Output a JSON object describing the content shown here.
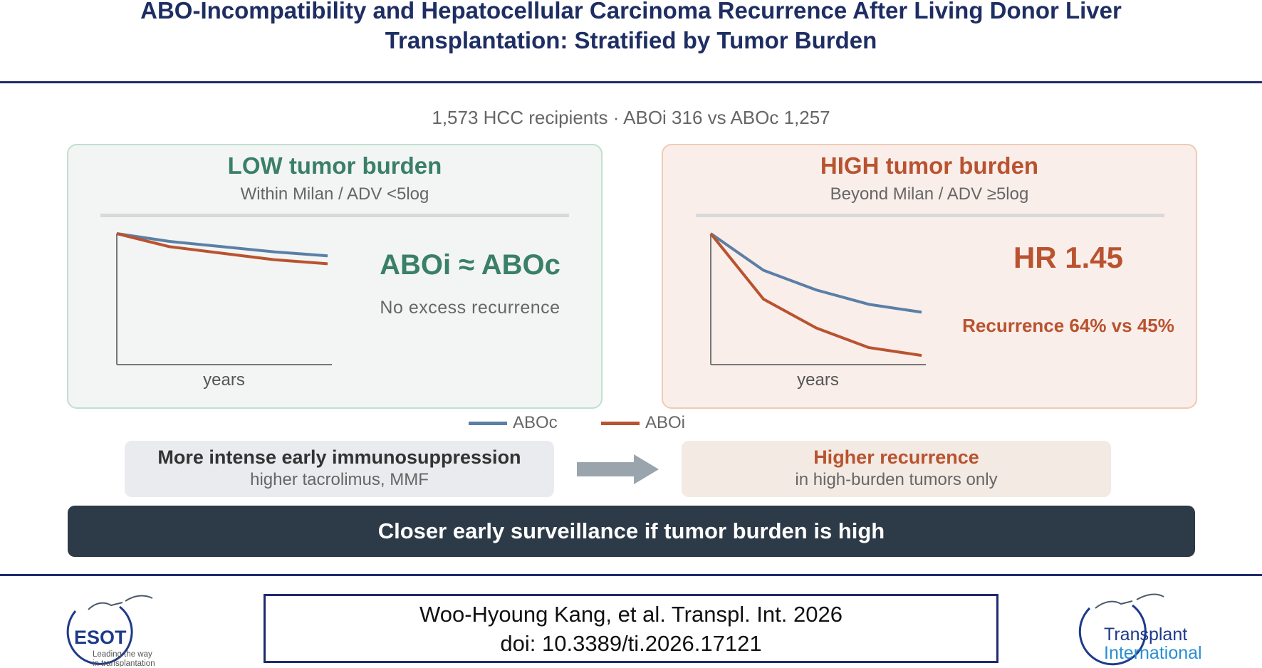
{
  "header": {
    "title_line1": "ABO-Incompatibility and Hepatocellular Carcinoma Recurrence After Living Donor Liver",
    "title_line2": "Transplantation: Stratified by Tumor Burden"
  },
  "stats": {
    "text": "1,573 HCC recipients  ·  ABOi 316 vs ABOc 1,257"
  },
  "low_panel": {
    "title": "LOW tumor burden",
    "subtitle": "Within Milan  /  ADV <5log",
    "x_label": "years",
    "headline": "ABOi ≈ ABOc",
    "note": "No excess recurrence"
  },
  "high_panel": {
    "title": "HIGH tumor burden",
    "subtitle": "Beyond Milan  /  ADV ≥5log",
    "x_label": "years",
    "headline": "HR 1.45",
    "note": "Recurrence 64%  vs 45%"
  },
  "legend": [
    {
      "label": "ABOc",
      "color": "#5b7fa6"
    },
    {
      "label": "ABOi",
      "color": "#b9532f"
    }
  ],
  "mechanism": {
    "cause_title": "More intense early immunosuppression",
    "cause_detail": "higher tacrolimus, MMF",
    "effect_title": "Higher recurrence",
    "effect_detail": "in high-burden tumors only"
  },
  "conclusion": "Closer early surveillance if tumor burden is high",
  "citation": {
    "line1": "Woo-Hyoung Kang, et al. Transpl. Int. 2026",
    "line2": "doi: 10.3389/ti.2026.17121"
  },
  "logos": {
    "left_name": "ESOT",
    "left_tagline1": "Leading the way",
    "left_tagline2": "in transplantation",
    "right_name1": "Transplant",
    "right_name2": "International"
  },
  "chart_data": [
    {
      "type": "line",
      "title": "LOW tumor burden",
      "xlabel": "years",
      "x": [
        0,
        1,
        2,
        3,
        4
      ],
      "series": [
        {
          "name": "ABOc",
          "values": [
            1.0,
            0.94,
            0.9,
            0.86,
            0.83
          ]
        },
        {
          "name": "ABOi",
          "values": [
            1.0,
            0.9,
            0.85,
            0.8,
            0.77
          ]
        }
      ],
      "ylim": [
        0,
        1
      ]
    },
    {
      "type": "line",
      "title": "HIGH tumor burden",
      "xlabel": "years",
      "x": [
        0,
        1,
        2,
        3,
        4
      ],
      "series": [
        {
          "name": "ABOc",
          "values": [
            1.0,
            0.72,
            0.57,
            0.46,
            0.4
          ]
        },
        {
          "name": "ABOi",
          "values": [
            1.0,
            0.5,
            0.28,
            0.13,
            0.07
          ]
        }
      ],
      "ylim": [
        0,
        1
      ]
    }
  ]
}
